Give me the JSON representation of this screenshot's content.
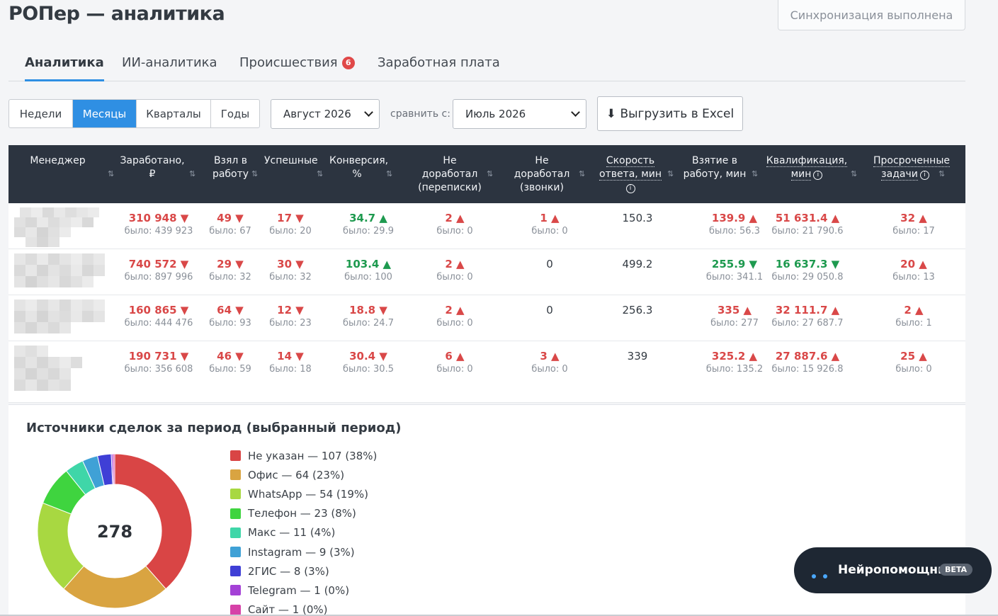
{
  "app": {
    "title": "РОПер — аналитика",
    "sync_status": "Синхронизация выполнена"
  },
  "tabs": [
    {
      "label": "Аналитика",
      "active": true
    },
    {
      "label": "ИИ-аналитика",
      "active": false
    },
    {
      "label": "Происшествия",
      "badge": "6",
      "active": false
    },
    {
      "label": "Заработная плата",
      "active": false
    }
  ],
  "period_toggle": {
    "options": [
      "Недели",
      "Месяцы",
      "Кварталы",
      "Годы"
    ],
    "selected": "Месяцы"
  },
  "period_select": {
    "value": "Август 2026"
  },
  "compare": {
    "label": "сравнить с:",
    "value": "Июль 2026"
  },
  "export_button": {
    "label": "⬇ Выгрузить в Excel"
  },
  "table": {
    "columns": [
      {
        "label": "Менеджер"
      },
      {
        "label": "Заработано, ₽"
      },
      {
        "label": "Взял в работу"
      },
      {
        "label": "Успешные"
      },
      {
        "label": "Конверсия, %"
      },
      {
        "label": "Не доработал (переписки)"
      },
      {
        "label": "Не доработал (звонки)"
      },
      {
        "label": "Скорость ответа, мин"
      },
      {
        "label": "Взятие в работу, мин"
      },
      {
        "label": "Квалификация, мин"
      },
      {
        "label": "Просроченные задачи"
      }
    ],
    "sort_icon": "⇅",
    "info_icon": "i",
    "rows": [
      {
        "earned": {
          "v": "310 948 ▼",
          "w": "было: 439 923",
          "c": "red"
        },
        "taken": {
          "v": "49 ▼",
          "w": "было: 67",
          "c": "red"
        },
        "success": {
          "v": "17 ▼",
          "w": "было: 20",
          "c": "red"
        },
        "conv": {
          "v": "34.7 ▲",
          "w": "было: 29.9",
          "c": "green"
        },
        "nd_chat": {
          "v": "2 ▲",
          "w": "было: 0",
          "c": "red"
        },
        "nd_calls": {
          "v": "1 ▲",
          "w": "было: 0",
          "c": "red"
        },
        "speed": {
          "v": "150.3",
          "w": "",
          "c": "plain"
        },
        "take_time": {
          "v": "139.9 ▲",
          "w": "было: 56.3",
          "c": "red"
        },
        "qual": {
          "v": "51 631.4 ▲",
          "w": "было: 21 790.6",
          "c": "red"
        },
        "overdue": {
          "v": "32 ▲",
          "w": "было: 17",
          "c": "red"
        }
      },
      {
        "earned": {
          "v": "740 572 ▼",
          "w": "было: 897 996",
          "c": "red"
        },
        "taken": {
          "v": "29 ▼",
          "w": "было: 32",
          "c": "red"
        },
        "success": {
          "v": "30 ▼",
          "w": "было: 32",
          "c": "red"
        },
        "conv": {
          "v": "103.4 ▲",
          "w": "было: 100",
          "c": "green"
        },
        "nd_chat": {
          "v": "2 ▲",
          "w": "было: 0",
          "c": "red"
        },
        "nd_calls": {
          "v": "0",
          "w": "",
          "c": "plain"
        },
        "speed": {
          "v": "499.2",
          "w": "",
          "c": "plain"
        },
        "take_time": {
          "v": "255.9 ▼",
          "w": "было: 341.1",
          "c": "green"
        },
        "qual": {
          "v": "16 637.3 ▼",
          "w": "было: 29 050.8",
          "c": "green"
        },
        "overdue": {
          "v": "20 ▲",
          "w": "было: 13",
          "c": "red"
        }
      },
      {
        "earned": {
          "v": "160 865 ▼",
          "w": "было: 444 476",
          "c": "red"
        },
        "taken": {
          "v": "64 ▼",
          "w": "было: 93",
          "c": "red"
        },
        "success": {
          "v": "12 ▼",
          "w": "было: 23",
          "c": "red"
        },
        "conv": {
          "v": "18.8 ▼",
          "w": "было: 24.7",
          "c": "red"
        },
        "nd_chat": {
          "v": "2 ▲",
          "w": "было: 0",
          "c": "red"
        },
        "nd_calls": {
          "v": "0",
          "w": "",
          "c": "plain"
        },
        "speed": {
          "v": "256.3",
          "w": "",
          "c": "plain"
        },
        "take_time": {
          "v": "335 ▲",
          "w": "было: 277",
          "c": "red"
        },
        "qual": {
          "v": "32 111.7 ▲",
          "w": "было: 27 687.7",
          "c": "red"
        },
        "overdue": {
          "v": "2 ▲",
          "w": "было: 1",
          "c": "red"
        }
      },
      {
        "earned": {
          "v": "190 731 ▼",
          "w": "было: 356 608",
          "c": "red"
        },
        "taken": {
          "v": "46 ▼",
          "w": "было: 59",
          "c": "red"
        },
        "success": {
          "v": "14 ▼",
          "w": "было: 18",
          "c": "red"
        },
        "conv": {
          "v": "30.4 ▼",
          "w": "было: 30.5",
          "c": "red"
        },
        "nd_chat": {
          "v": "6 ▲",
          "w": "было: 0",
          "c": "red"
        },
        "nd_calls": {
          "v": "3 ▲",
          "w": "было: 0",
          "c": "red"
        },
        "speed": {
          "v": "339",
          "w": "",
          "c": "plain"
        },
        "take_time": {
          "v": "325.2 ▲",
          "w": "было: 135.2",
          "c": "red"
        },
        "qual": {
          "v": "27 887.6 ▲",
          "w": "было: 15 926.8",
          "c": "red"
        },
        "overdue": {
          "v": "25 ▲",
          "w": "было: 0",
          "c": "red"
        }
      }
    ]
  },
  "sources": {
    "title": "Источники сделок за период (выбранный период)",
    "total": "278",
    "items": [
      {
        "label": "Не указан — 107 (38%)",
        "value": 107,
        "color": "#d94545"
      },
      {
        "label": "Офис — 64 (23%)",
        "value": 64,
        "color": "#d9a441"
      },
      {
        "label": "WhatsApp — 54 (19%)",
        "value": 54,
        "color": "#a8d841"
      },
      {
        "label": "Телефон — 23 (8%)",
        "value": 23,
        "color": "#3fd43f"
      },
      {
        "label": "Макс — 11 (4%)",
        "value": 11,
        "color": "#3fd6a8"
      },
      {
        "label": "Instagram — 9 (3%)",
        "value": 9,
        "color": "#3fa1d6"
      },
      {
        "label": "2ГИС — 8 (3%)",
        "value": 8,
        "color": "#3f3fd6"
      },
      {
        "label": "Telegram — 1 (0%)",
        "value": 1,
        "color": "#a441d6"
      },
      {
        "label": "Сайт — 1 (0%)",
        "value": 1,
        "color": "#d641a8"
      }
    ]
  },
  "assistant": {
    "label": "Нейропомощник",
    "badge": "BETA"
  }
}
